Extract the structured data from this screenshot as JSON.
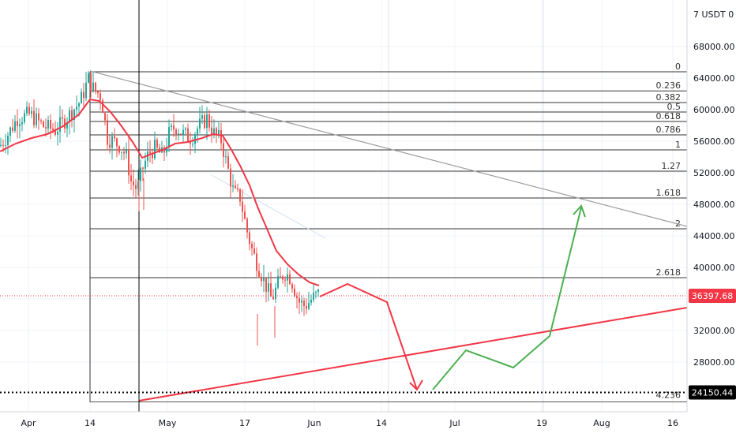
{
  "chart_data": {
    "type": "candlestick",
    "currency": "USDT",
    "axis_header": "7 USDT 0",
    "x_ticks": [
      "Apr",
      "14",
      "May",
      "17",
      "Jun",
      "14",
      "Jul",
      "19",
      "Aug",
      "16"
    ],
    "y_ticks": [
      "68000.00",
      "64000.00",
      "60000.00",
      "56000.00",
      "52000.00",
      "48000.00",
      "44000.00",
      "40000.00",
      "36000.00",
      "32000.00",
      "28000.00"
    ],
    "ylim": [
      22500,
      72000
    ],
    "grid": true,
    "price_tags": [
      {
        "name": "last-price",
        "value": 36397.68,
        "label": "36397.68",
        "color": "#f23645"
      },
      {
        "name": "dotted-support",
        "value": 24150.44,
        "label": "24150.44",
        "color": "#000000"
      }
    ],
    "fibonacci": {
      "top": 64800,
      "bottom": 24150,
      "levels": [
        {
          "ratio": 0,
          "label": "0",
          "price": 64800
        },
        {
          "ratio": 0.236,
          "label": "0.236",
          "price": 62380
        },
        {
          "ratio": 0.382,
          "label": "0.382",
          "price": 60900
        },
        {
          "ratio": 0.5,
          "label": "0.5",
          "price": 59700
        },
        {
          "ratio": 0.618,
          "label": "0.618",
          "price": 58500
        },
        {
          "ratio": 0.786,
          "label": "0.786",
          "price": 56800
        },
        {
          "ratio": 1,
          "label": "1",
          "price": 54900
        },
        {
          "ratio": 1.27,
          "label": "1.27",
          "price": 52200
        },
        {
          "ratio": 1.618,
          "label": "1.618",
          "price": 48800
        },
        {
          "ratio": 2,
          "label": "2",
          "price": 44900
        },
        {
          "ratio": 2.618,
          "label": "2.618",
          "price": 38700
        },
        {
          "ratio": 4.236,
          "label": "4.236",
          "price": 24150
        }
      ]
    },
    "candles": {
      "up_color": "#26a69a",
      "down_color": "#ef5350"
    },
    "moving_average": {
      "color": "#f23645"
    },
    "annotations": {
      "projection_down": {
        "color": "#f23645"
      },
      "projection_up": {
        "color": "#4caf50"
      },
      "support_trend": {
        "color": "#f23645"
      },
      "resistance_trend": {
        "color": "#9e9e9e"
      }
    }
  }
}
